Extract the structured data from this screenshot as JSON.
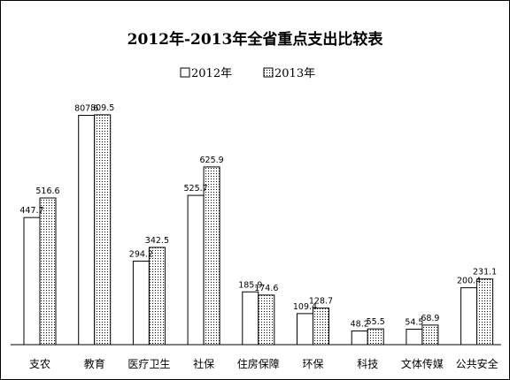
{
  "chart_data": {
    "type": "bar",
    "title": "2012年-2013年全省重点支出比较表",
    "xlabel": "",
    "ylabel": "",
    "ylim": [
      0,
      900
    ],
    "grid": false,
    "legend_position": "top-center",
    "categories": [
      "支农",
      "教育",
      "医疗卫生",
      "社保",
      "住房保障",
      "环保",
      "科技",
      "文体传媒",
      "公共安全"
    ],
    "series": [
      {
        "name": "2012年",
        "fill": "plain",
        "values": [
          447.7,
          807.6,
          294.2,
          525.7,
          185.9,
          109.4,
          48.2,
          54.5,
          200.4
        ],
        "labels": [
          "447.7",
          "807.6",
          "294.2",
          "525.7",
          "185.9",
          "109.4",
          "48.2",
          "54.5",
          "200.4"
        ]
      },
      {
        "name": "2013年",
        "fill": "dotted",
        "values": [
          516.6,
          809.5,
          342.5,
          625.9,
          174.6,
          128.7,
          55.5,
          68.9,
          231.1
        ],
        "labels": [
          "516.6",
          "809.5",
          "342.5",
          "625.9",
          "174.6",
          "128.7",
          "55.5",
          "68.9",
          "231.1"
        ]
      }
    ],
    "colors": {
      "bar_fill": "#ffffff",
      "bar_stroke": "#000000",
      "dot": "#000000"
    }
  }
}
